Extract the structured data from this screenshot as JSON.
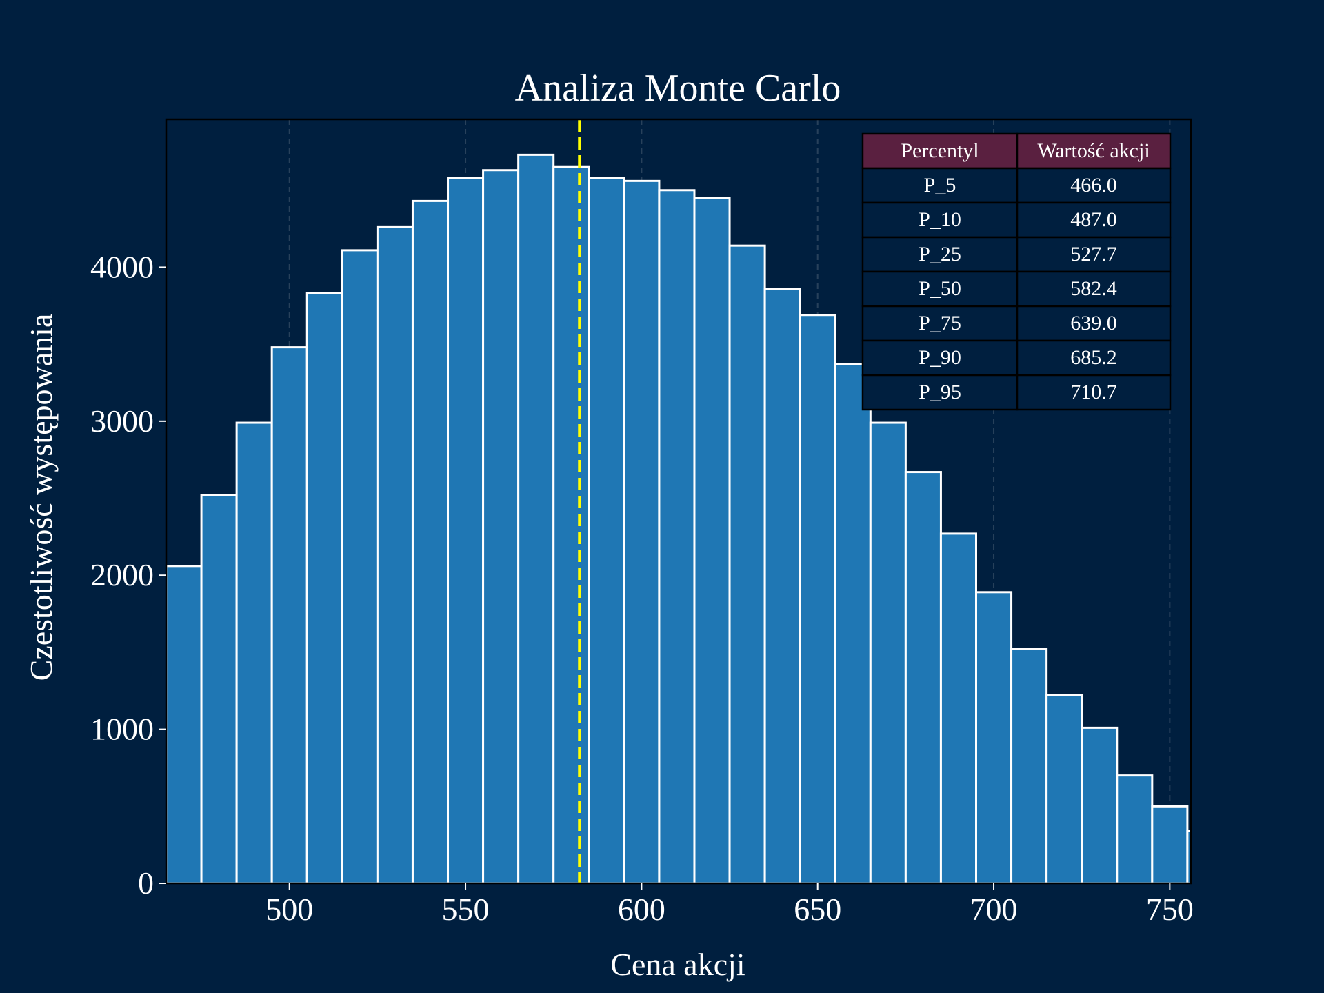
{
  "chart_data": {
    "type": "bar",
    "title": "Analiza Monte Carlo",
    "xlabel": "Cena akcji",
    "ylabel": "Czestotliwość występowania",
    "xlim": [
      465,
      756
    ],
    "ylim": [
      0,
      4960
    ],
    "x_ticks": [
      500,
      550,
      600,
      650,
      700,
      750
    ],
    "y_ticks": [
      0,
      1000,
      2000,
      3000,
      4000
    ],
    "bin_edges": [
      465,
      475,
      485,
      495,
      505,
      515,
      525,
      535,
      545,
      555,
      565,
      575,
      585,
      595,
      605,
      615,
      625,
      635,
      645,
      655,
      665,
      675,
      685,
      695,
      705,
      715,
      725,
      735,
      745,
      755,
      765
    ],
    "values": [
      2060,
      2520,
      2990,
      3480,
      3830,
      4110,
      4260,
      4430,
      4580,
      4630,
      4730,
      4650,
      4580,
      4560,
      4500,
      4450,
      4140,
      3860,
      3690,
      3370,
      2990,
      2670,
      2270,
      1890,
      1520,
      1220,
      1010,
      700,
      500,
      340
    ],
    "median_line": 582.4,
    "grid": "vertical dashed",
    "colors": {
      "background": "#001f3f",
      "bar": "#1f77b4",
      "bar_edge": "#ffffff",
      "median": "#ffff00",
      "table_header": "#5a2040",
      "table_cell": "#001f3f"
    },
    "table": {
      "headers": [
        "Percentyl",
        "Wartość akcji"
      ],
      "rows": [
        [
          "P_5",
          "466.0"
        ],
        [
          "P_10",
          "487.0"
        ],
        [
          "P_25",
          "527.7"
        ],
        [
          "P_50",
          "582.4"
        ],
        [
          "P_75",
          "639.0"
        ],
        [
          "P_90",
          "685.2"
        ],
        [
          "P_95",
          "710.7"
        ]
      ],
      "placement": "top-right"
    }
  }
}
